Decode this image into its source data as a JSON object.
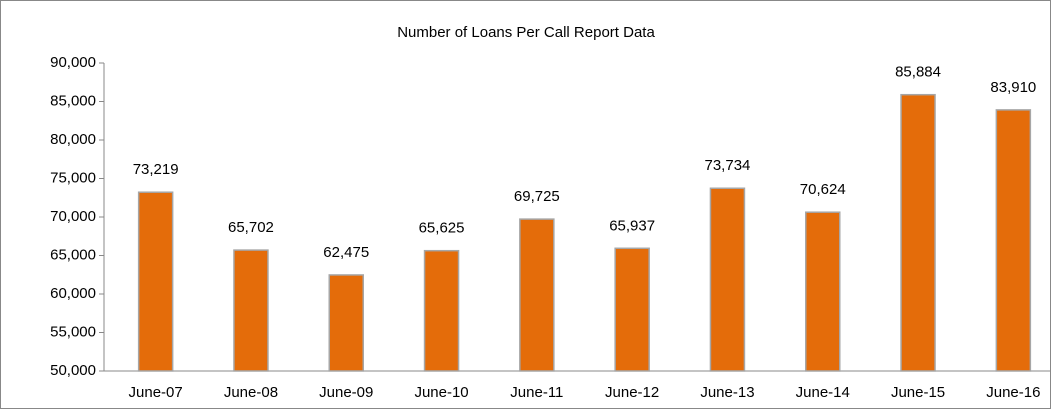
{
  "chart_data": {
    "type": "bar",
    "title": "Number of Loans Per Call Report Data",
    "categories": [
      "June-07",
      "June-08",
      "June-09",
      "June-10",
      "June-11",
      "June-12",
      "June-13",
      "June-14",
      "June-15",
      "June-16"
    ],
    "values": [
      73219,
      65702,
      62475,
      65625,
      69725,
      65937,
      73734,
      70624,
      85884,
      83910
    ],
    "value_labels": [
      "73,219",
      "65,702",
      "62,475",
      "65,625",
      "69,725",
      "65,937",
      "73,734",
      "70,624",
      "85,884",
      "83,910"
    ],
    "color": "#e46c0a",
    "ylim": [
      50000,
      90000
    ],
    "yticks": [
      {
        "value": 50000,
        "label": "50,000"
      },
      {
        "value": 55000,
        "label": "55,000"
      },
      {
        "value": 60000,
        "label": "60,000"
      },
      {
        "value": 65000,
        "label": "65,000"
      },
      {
        "value": 70000,
        "label": "70,000"
      },
      {
        "value": 75000,
        "label": "75,000"
      },
      {
        "value": 80000,
        "label": "80,000"
      },
      {
        "value": 85000,
        "label": "85,000"
      },
      {
        "value": 90000,
        "label": "90,000"
      }
    ],
    "grid": false
  }
}
